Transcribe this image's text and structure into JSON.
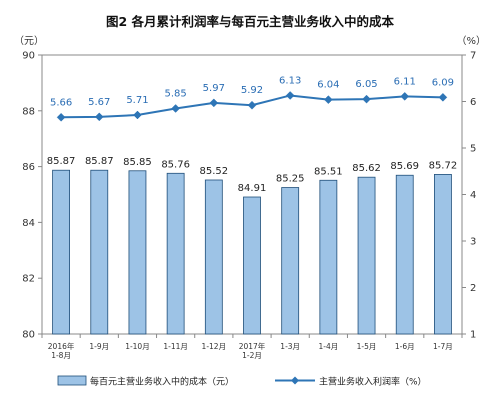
{
  "chart_data": {
    "type": "bar+line",
    "title": "图2 各月累计利润率与每百元主营业务收入中的成本",
    "left_axis_unit": "（元）",
    "right_axis_unit": "（%）",
    "left_ylim": [
      80,
      90
    ],
    "left_ticks": [
      "80",
      "82",
      "84",
      "86",
      "88",
      "90"
    ],
    "right_ylim": [
      1,
      7
    ],
    "right_ticks": [
      "1",
      "2",
      "3",
      "4",
      "5",
      "6",
      "7"
    ],
    "categories": [
      [
        "2016年",
        "1-8月"
      ],
      [
        "1-9月"
      ],
      [
        "1-10月"
      ],
      [
        "1-11月"
      ],
      [
        "1-12月"
      ],
      [
        "2017年",
        "1-2月"
      ],
      [
        "1-3月"
      ],
      [
        "1-4月"
      ],
      [
        "1-5月"
      ],
      [
        "1-6月"
      ],
      [
        "1-7月"
      ]
    ],
    "series": [
      {
        "name": "每百元主营业务收入中的成本（元）",
        "type": "bar",
        "axis": "left",
        "values": [
          85.87,
          85.87,
          85.85,
          85.76,
          85.52,
          84.91,
          85.25,
          85.51,
          85.62,
          85.69,
          85.72
        ],
        "labels": [
          "85.87",
          "85.87",
          "85.85",
          "85.76",
          "85.52",
          "84.91",
          "85.25",
          "85.51",
          "85.62",
          "85.69",
          "85.72"
        ],
        "color": "#9dc3e6"
      },
      {
        "name": "主营业务收入利润率（%）",
        "type": "line",
        "axis": "right",
        "values": [
          5.66,
          5.67,
          5.71,
          5.85,
          5.97,
          5.92,
          6.13,
          6.04,
          6.05,
          6.11,
          6.09
        ],
        "labels": [
          "5.66",
          "5.67",
          "5.71",
          "5.85",
          "5.97",
          "5.92",
          "6.13",
          "6.04",
          "6.05",
          "6.11",
          "6.09"
        ],
        "color": "#2e75b6"
      }
    ],
    "grid": false,
    "legend_position": "bottom"
  }
}
